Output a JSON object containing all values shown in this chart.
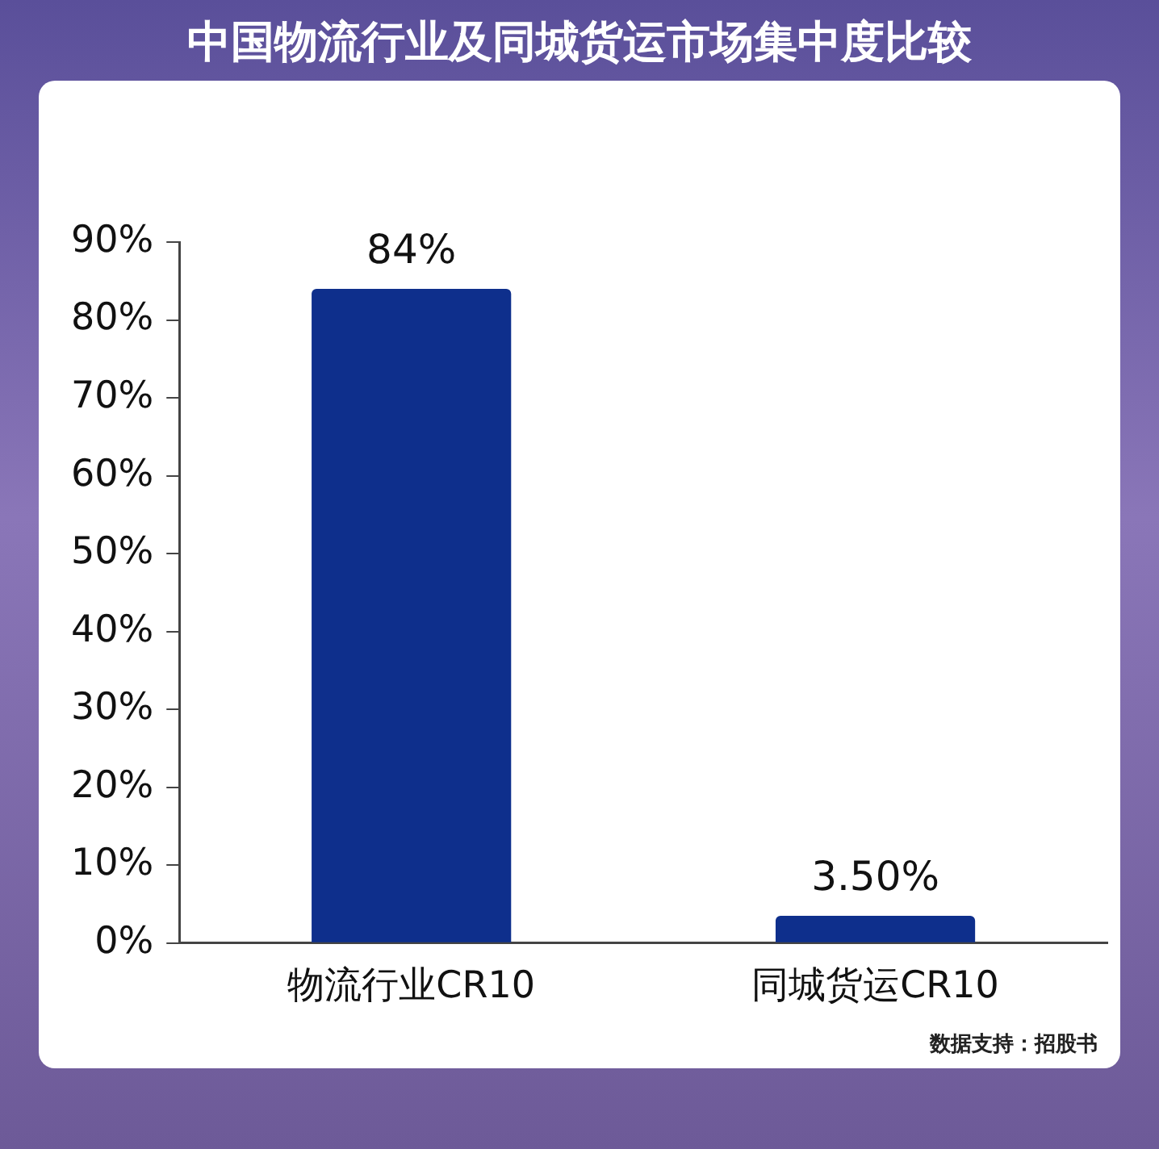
{
  "chart_data": {
    "type": "bar",
    "title": "中国物流行业及同城货运市场集中度比较",
    "categories": [
      "物流行业CR10",
      "同城货运CR10"
    ],
    "values": [
      84,
      3.5
    ],
    "color": "#0e2f8c",
    "value_labels": [
      "84%",
      "3.50%"
    ],
    "ylim": [
      0,
      90
    ],
    "yticks": [
      {
        "value": 0,
        "label": "0%"
      },
      {
        "value": 10,
        "label": "10%"
      },
      {
        "value": 20,
        "label": "20%"
      },
      {
        "value": 30,
        "label": "30%"
      },
      {
        "value": 40,
        "label": "40%"
      },
      {
        "value": 50,
        "label": "50%"
      },
      {
        "value": 60,
        "label": "60%"
      },
      {
        "value": 70,
        "label": "70%"
      },
      {
        "value": 80,
        "label": "80%"
      },
      {
        "value": 90,
        "label": "90%"
      }
    ],
    "grid": false,
    "legend": false,
    "annotations": [
      "数据支持：招股书"
    ]
  }
}
